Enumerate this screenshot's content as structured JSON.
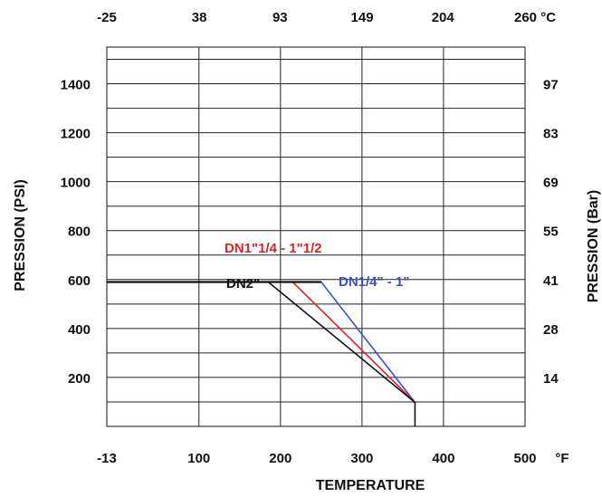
{
  "chart_data": {
    "type": "line",
    "xlabel": "TEMPERATURE",
    "ylabel_left": "PRESSION (PSI)",
    "ylabel_right": "PRESSION (Bar)",
    "x_unit_bottom": "°F",
    "x_unit_top": "°C",
    "xlim": [
      -13,
      500
    ],
    "ylim": [
      0,
      1550
    ],
    "x_ticks_bottom": [
      "-13",
      "100",
      "200",
      "300",
      "400",
      "500"
    ],
    "x_ticks_top": [
      "-25",
      "38",
      "93",
      "149",
      "204",
      "260"
    ],
    "y_ticks_left": [
      "1400",
      "1200",
      "1000",
      "800",
      "600",
      "400",
      "200"
    ],
    "y_ticks_right": [
      "97",
      "83",
      "69",
      "55",
      "41",
      "28",
      "14"
    ],
    "grid": true,
    "series": [
      {
        "name": "DN1/4\" - 1\"",
        "color": "#3b4fc8",
        "points": [
          [
            -13,
            590
          ],
          [
            250,
            590
          ],
          [
            365,
            98
          ]
        ]
      },
      {
        "name": "DN1\"1/4 - 1\"1/2",
        "color": "#e0202a",
        "points": [
          [
            -13,
            590
          ],
          [
            215,
            590
          ],
          [
            365,
            98
          ]
        ]
      },
      {
        "name": "DN2\"",
        "color": "#111111",
        "points": [
          [
            -13,
            590
          ],
          [
            185,
            590
          ],
          [
            365,
            98
          ],
          [
            365,
            0
          ]
        ]
      }
    ]
  }
}
